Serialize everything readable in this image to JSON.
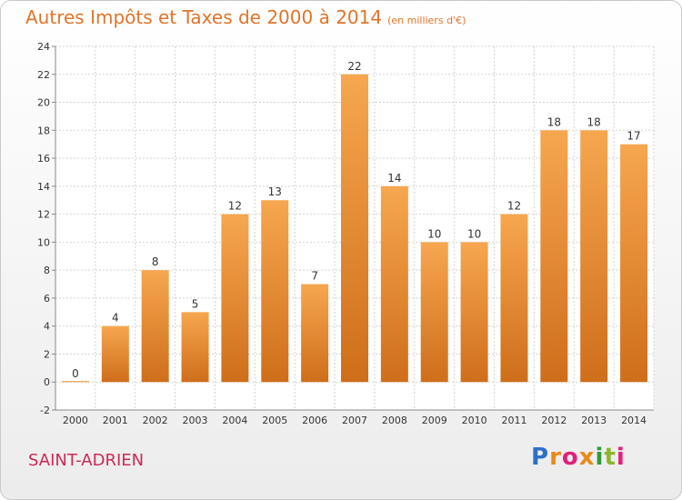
{
  "title": "Autres Impôts et Taxes de 2000 à 2014",
  "unit": "(en milliers d'€)",
  "town": "SAINT-ADRIEN",
  "logo_text": "Proxiti",
  "colors": {
    "bar_top": "#f6a74f",
    "bar_bottom": "#cf6e1a",
    "title": "#e0752a",
    "town": "#cc2a55",
    "grid": "#d4d4d4"
  },
  "chart_data": {
    "type": "bar",
    "categories": [
      "2000",
      "2001",
      "2002",
      "2003",
      "2004",
      "2005",
      "2006",
      "2007",
      "2008",
      "2009",
      "2010",
      "2011",
      "2012",
      "2013",
      "2014"
    ],
    "values": [
      0,
      4,
      8,
      5,
      12,
      13,
      7,
      22,
      14,
      10,
      10,
      12,
      18,
      18,
      17
    ],
    "ylim": [
      -2,
      24
    ],
    "yticks": [
      -2,
      0,
      2,
      4,
      6,
      8,
      10,
      12,
      14,
      16,
      18,
      20,
      22,
      24
    ],
    "grid": true,
    "xlabel": "",
    "ylabel": ""
  }
}
